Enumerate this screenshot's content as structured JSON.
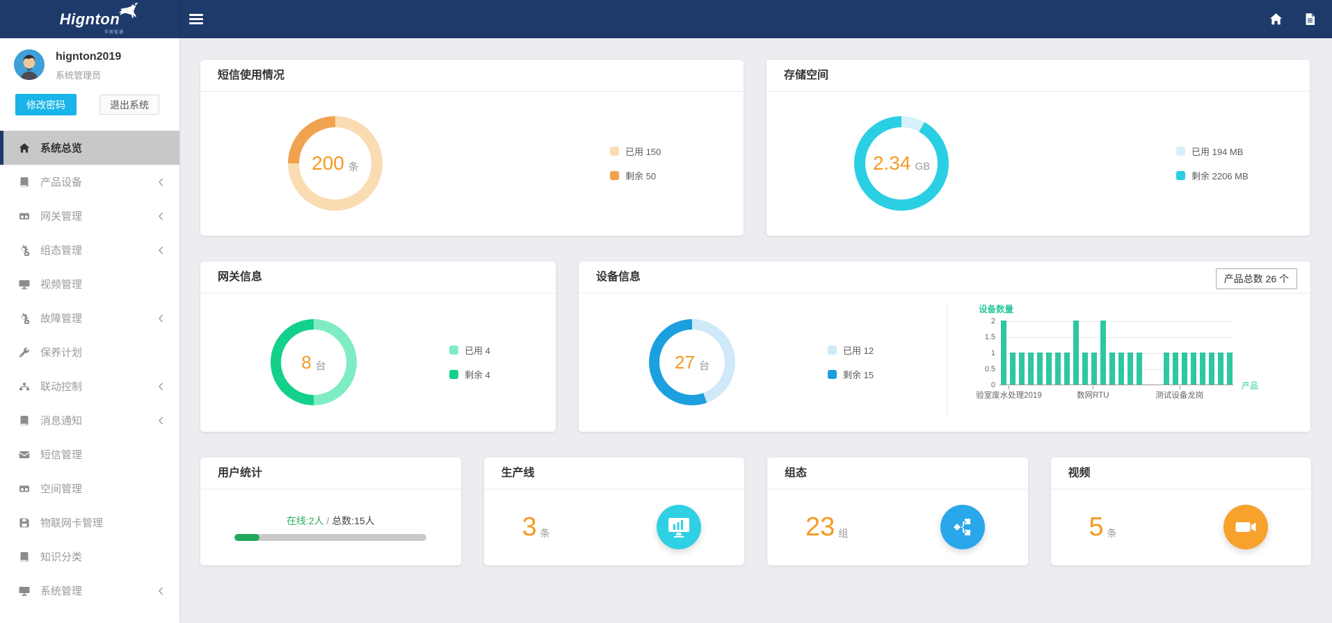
{
  "brand": {
    "name": "Hignton",
    "subtitle": "华辰智通"
  },
  "user": {
    "name": "hignton2019",
    "role": "系统管理员",
    "change_password_label": "修改密码",
    "logout_label": "退出系统"
  },
  "icons": {
    "topbar": [
      "hamburger-icon",
      "home-icon",
      "document-icon"
    ],
    "brand": "antelope-logo-icon"
  },
  "sidebar": {
    "items": [
      {
        "label": "系统总览",
        "icon": "home",
        "active": true,
        "chevron": false
      },
      {
        "label": "产品设备",
        "icon": "book",
        "active": false,
        "chevron": true
      },
      {
        "label": "网关管理",
        "icon": "video",
        "active": false,
        "chevron": true
      },
      {
        "label": "组态管理",
        "icon": "gears",
        "active": false,
        "chevron": true
      },
      {
        "label": "视频管理",
        "icon": "monitor",
        "active": false,
        "chevron": false
      },
      {
        "label": "故障管理",
        "icon": "gears",
        "active": false,
        "chevron": true
      },
      {
        "label": "保养计划",
        "icon": "wrench",
        "active": false,
        "chevron": false
      },
      {
        "label": "联动控制",
        "icon": "sitemap",
        "active": false,
        "chevron": true
      },
      {
        "label": "消息通知",
        "icon": "book",
        "active": false,
        "chevron": true
      },
      {
        "label": "短信管理",
        "icon": "envelope",
        "active": false,
        "chevron": false
      },
      {
        "label": "空间管理",
        "icon": "video",
        "active": false,
        "chevron": false
      },
      {
        "label": "物联网卡管理",
        "icon": "floppy",
        "active": false,
        "chevron": false
      },
      {
        "label": "知识分类",
        "icon": "book",
        "active": false,
        "chevron": false
      },
      {
        "label": "系统管理",
        "icon": "monitor",
        "active": false,
        "chevron": true
      }
    ]
  },
  "panels": {
    "sms": {
      "title": "短信使用情况",
      "center": {
        "value": "200",
        "unit": "条"
      },
      "legend": [
        {
          "text": "已用 150",
          "color": "#fadcb2"
        },
        {
          "text": "剩余 50",
          "color": "#f0a24e"
        }
      ]
    },
    "storage": {
      "title": "存储空间",
      "center": {
        "value": "2.34",
        "unit": "GB"
      },
      "legend": [
        {
          "text": "已用 194 MB",
          "color": "#d5f1fa"
        },
        {
          "text": "剩余 2206 MB",
          "color": "#2acfe3"
        }
      ]
    },
    "gateway": {
      "title": "网关信息",
      "center": {
        "value": "8",
        "unit": "台"
      },
      "legend": [
        {
          "text": "已用 4",
          "color": "#7fedc3"
        },
        {
          "text": "剩余 4",
          "color": "#13d08a"
        }
      ]
    },
    "device": {
      "title": "设备信息",
      "total_button": "产品总数 26 个",
      "center": {
        "value": "27",
        "unit": "台"
      },
      "legend": [
        {
          "text": "已用 12",
          "color": "#cfe9f8"
        },
        {
          "text": "剩余 15",
          "color": "#1b9fdf"
        }
      ]
    },
    "users": {
      "title": "用户统计",
      "online": "在线:2人",
      "slash": "/",
      "total": "总数:15人",
      "progress_pct": 13
    },
    "production": {
      "title": "生产线",
      "value": "3",
      "unit": "条"
    },
    "scada": {
      "title": "组态",
      "value": "23",
      "unit": "组"
    },
    "video": {
      "title": "视频",
      "value": "5",
      "unit": "条"
    }
  },
  "chart_data": [
    {
      "id": "sms_donut",
      "type": "pie",
      "title": "短信使用情况",
      "center_label": "200 条",
      "segments": [
        {
          "label": "已用",
          "value": 150,
          "color": "#fadcb2"
        },
        {
          "label": "剩余",
          "value": 50,
          "color": "#f0a24e"
        }
      ]
    },
    {
      "id": "storage_donut",
      "type": "pie",
      "title": "存储空间",
      "center_label": "2.34 GB",
      "segments": [
        {
          "label": "已用",
          "value": 194,
          "color": "#d5f1fa"
        },
        {
          "label": "剩余",
          "value": 2206,
          "color": "#2acfe3"
        }
      ]
    },
    {
      "id": "gateway_donut",
      "type": "pie",
      "title": "网关信息",
      "center_label": "8 台",
      "segments": [
        {
          "label": "已用",
          "value": 4,
          "color": "#7fedc3"
        },
        {
          "label": "剩余",
          "value": 4,
          "color": "#13d08a"
        }
      ]
    },
    {
      "id": "device_donut",
      "type": "pie",
      "title": "设备信息",
      "center_label": "27 台",
      "segments": [
        {
          "label": "已用",
          "value": 12,
          "color": "#cfe9f8"
        },
        {
          "label": "剩余",
          "value": 15,
          "color": "#1b9fdf"
        }
      ]
    },
    {
      "id": "device_bar",
      "type": "bar",
      "title": "设备数量",
      "xlabel": "产品",
      "ylabel": "设备数量",
      "ylim": [
        0,
        2
      ],
      "yticks": [
        0,
        0.5,
        1,
        1.5,
        2
      ],
      "values": [
        2,
        1,
        1,
        1,
        1,
        1,
        1,
        1,
        2,
        1,
        1,
        2,
        1,
        1,
        1,
        1,
        0,
        0,
        1,
        1,
        1,
        1,
        1,
        1,
        1,
        1
      ],
      "visible_x_labels": [
        "验室废水处理2019",
        "数网RTU",
        "测试设备龙岗"
      ],
      "bar_color": "#2ec7a0",
      "grid": true,
      "legend_position": "none"
    }
  ]
}
